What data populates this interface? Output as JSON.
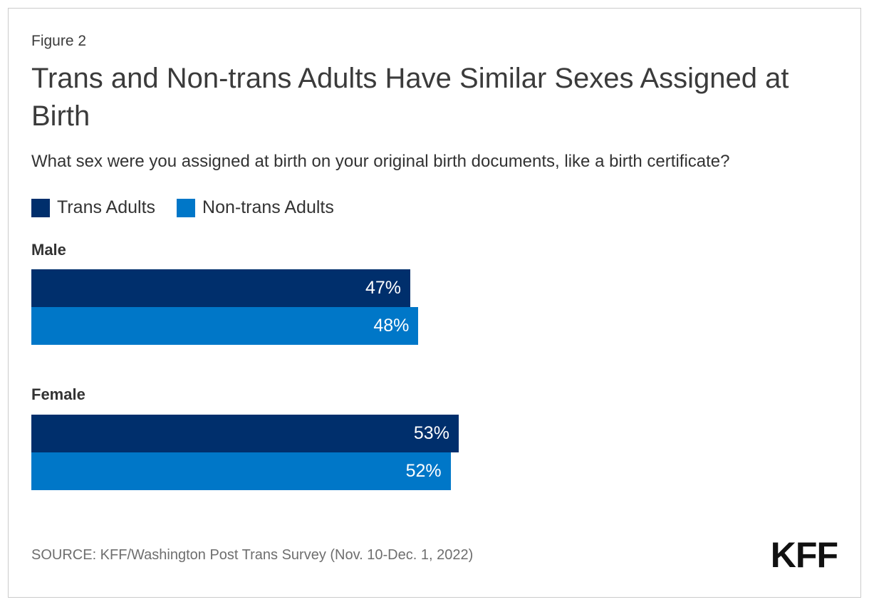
{
  "figure_label": "Figure 2",
  "title": "Trans and Non-trans Adults Have Similar Sexes Assigned at Birth",
  "subtitle": "What sex were you assigned at birth on your original birth documents, like a birth certificate?",
  "legend": [
    {
      "label": "Trans Adults",
      "color": "#002F6C"
    },
    {
      "label": "Non-trans Adults",
      "color": "#0077C8"
    }
  ],
  "colors": {
    "trans_adults": "#002F6C",
    "non_trans_adults": "#0077C8",
    "bar_value_text": "#ffffff",
    "text": "#333333",
    "source_text": "#6e6e6e",
    "card_border": "#cbcbcb"
  },
  "chart_data": {
    "type": "bar",
    "orientation": "horizontal",
    "categories": [
      "Male",
      "Female"
    ],
    "series": [
      {
        "name": "Trans Adults",
        "color": "#002F6C",
        "values": [
          47,
          53
        ]
      },
      {
        "name": "Non-trans Adults",
        "color": "#0077C8",
        "values": [
          48,
          52
        ]
      }
    ],
    "value_suffix": "%",
    "xlim": [
      0,
      100
    ],
    "grid": false,
    "legend_position": "top-left"
  },
  "source": "SOURCE: KFF/Washington Post Trans Survey (Nov. 10-Dec. 1, 2022)",
  "logo": "KFF"
}
